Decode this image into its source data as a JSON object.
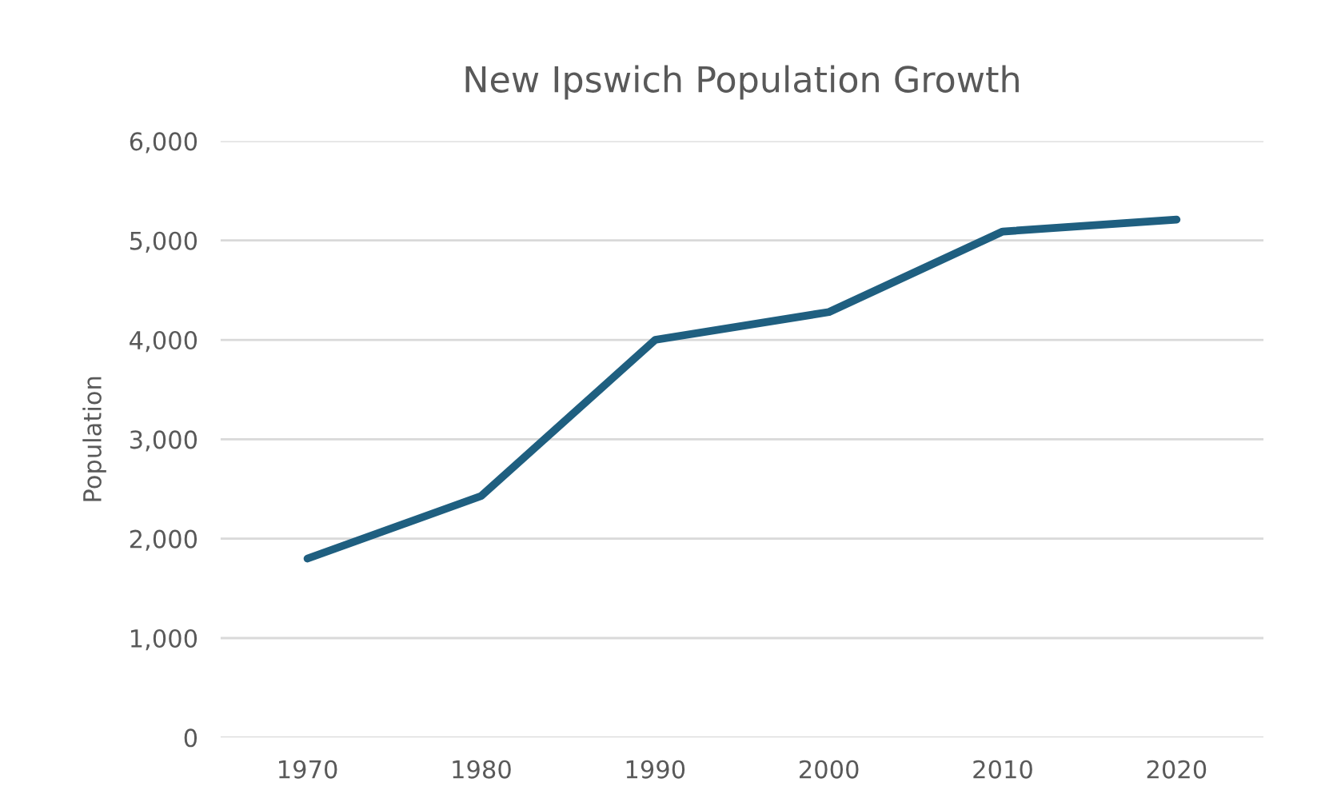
{
  "chart_data": {
    "type": "line",
    "title": "New Ipswich Population Growth",
    "ylabel": "Population",
    "categories": [
      "1970",
      "1980",
      "1990",
      "2000",
      "2010",
      "2020"
    ],
    "series": [
      {
        "color": "#1f5f80",
        "values": [
          1800,
          2430,
          4000,
          4280,
          5090,
          5210
        ]
      }
    ],
    "ylim": [
      0,
      6000
    ],
    "yticks": [
      {
        "value": 0,
        "label": "0"
      },
      {
        "value": 1000,
        "label": "1,000"
      },
      {
        "value": 2000,
        "label": "2,000"
      },
      {
        "value": 3000,
        "label": "3,000"
      },
      {
        "value": 4000,
        "label": "4,000"
      },
      {
        "value": 5000,
        "label": "5,000"
      },
      {
        "value": 6000,
        "label": "6,000"
      }
    ],
    "grid": "y",
    "marker": "none",
    "line_style": "solid"
  }
}
